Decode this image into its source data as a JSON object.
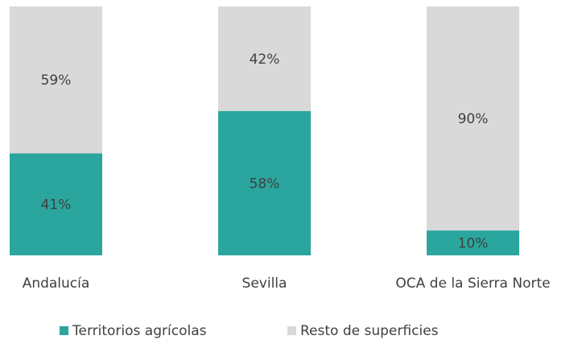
{
  "chart_data": {
    "type": "stacked-bar",
    "categories": [
      "Andalucía",
      "Sevilla",
      "OCA de la Sierra Norte"
    ],
    "series": [
      {
        "name": "Territorios agrícolas",
        "color": "#2aa69e",
        "values": [
          41,
          58,
          10
        ],
        "value_labels": [
          "41%",
          "58%",
          "10%"
        ]
      },
      {
        "name": "Resto de superficies",
        "color": "#d9d9d9",
        "values": [
          59,
          42,
          90
        ],
        "value_labels": [
          "59%",
          "42%",
          "90%"
        ]
      }
    ],
    "ylim": [
      0,
      100
    ]
  }
}
